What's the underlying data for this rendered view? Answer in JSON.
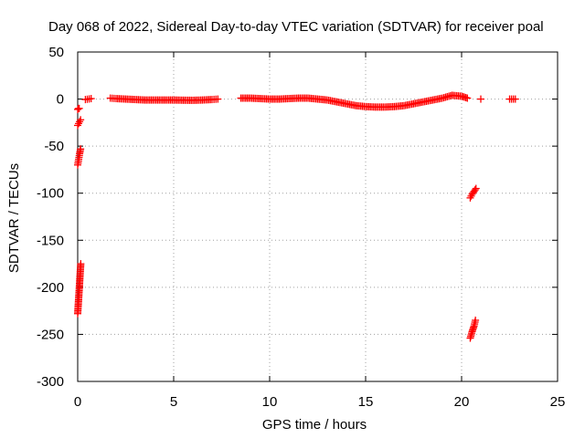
{
  "chart_data": {
    "type": "scatter",
    "title": "Day 068 of 2022, Sidereal Day-to-day VTEC variation (SDTVAR) for receiver poal",
    "xlabel": "GPS time / hours",
    "ylabel": "SDTVAR / TECUs",
    "xlim": [
      0,
      25
    ],
    "ylim": [
      -300,
      50
    ],
    "xticks": [
      0,
      5,
      10,
      15,
      20,
      25
    ],
    "yticks": [
      50,
      0,
      -50,
      -100,
      -150,
      -200,
      -250,
      -300
    ],
    "grid": true,
    "marker": "+",
    "color": "#ff0000",
    "segments": [
      {
        "x": [
          0.0,
          0.04,
          0.08
        ],
        "y": [
          -11,
          -10,
          -10
        ]
      },
      {
        "x": [
          0.0,
          0.05,
          0.1,
          0.15
        ],
        "y": [
          -28,
          -26,
          -24,
          -22
        ]
      },
      {
        "x": [
          0.0,
          0.05,
          0.1,
          0.15
        ],
        "y": [
          -70,
          -64,
          -58,
          -53
        ]
      },
      {
        "x": [
          0.0,
          0.04,
          0.08,
          0.12,
          0.16
        ],
        "y": [
          -228,
          -215,
          -202,
          -188,
          -175
        ]
      },
      {
        "x": [
          0.4,
          0.7
        ],
        "y": [
          -0.5,
          0.5
        ]
      },
      {
        "x": [
          1.7,
          2.0,
          2.5,
          3.0,
          3.5,
          4.0,
          4.5,
          5.0,
          5.5,
          6.0,
          6.5,
          7.0,
          7.3
        ],
        "y": [
          1,
          0.5,
          0,
          -0.5,
          -1,
          -1,
          -1,
          -1,
          -1.2,
          -1.3,
          -1,
          -0.5,
          0
        ]
      },
      {
        "x": [
          8.5,
          9.0,
          9.5,
          10.0,
          10.5,
          11.0,
          11.5,
          12.0,
          12.5,
          13.0,
          13.5,
          14.0,
          14.5,
          15.0,
          15.5,
          16.0,
          16.5,
          17.0,
          17.5,
          18.0,
          18.5,
          19.0,
          19.5,
          20.0,
          20.3
        ],
        "y": [
          1,
          1,
          0.5,
          0,
          0,
          0.5,
          1,
          1,
          0,
          -1,
          -3,
          -5,
          -7,
          -8,
          -8.5,
          -8.5,
          -8,
          -7,
          -5,
          -3,
          -1,
          1,
          4,
          3,
          1
        ]
      },
      {
        "x": [
          21.0
        ],
        "y": [
          0
        ]
      },
      {
        "x": [
          22.5,
          22.8
        ],
        "y": [
          0,
          0
        ]
      },
      {
        "x": [
          20.45,
          20.55,
          20.65,
          20.75
        ],
        "y": [
          -105,
          -101,
          -98,
          -95
        ]
      },
      {
        "x": [
          20.45,
          20.55,
          20.65,
          20.72
        ],
        "y": [
          -254,
          -247,
          -241,
          -235
        ]
      }
    ]
  }
}
